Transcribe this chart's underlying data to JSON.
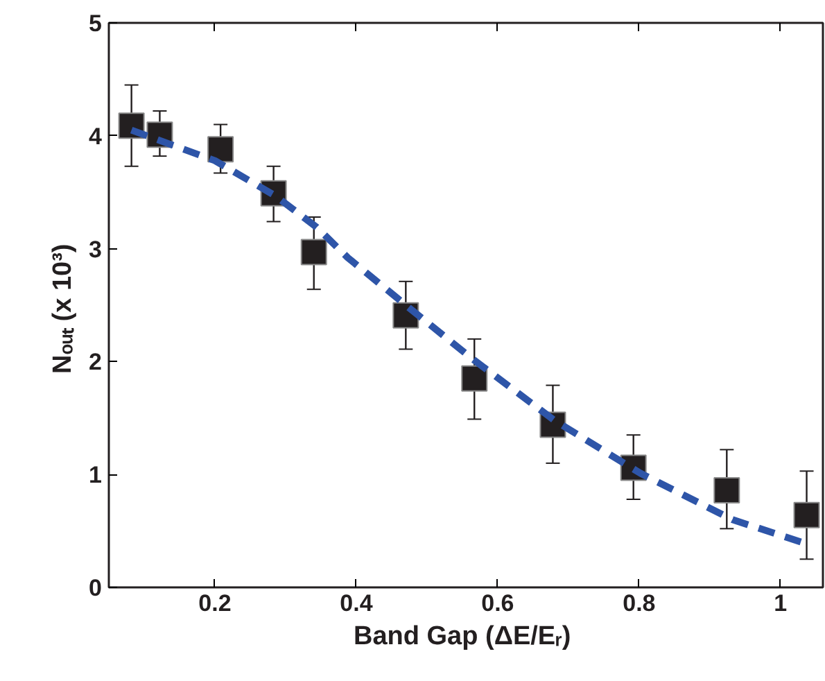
{
  "chart_data": {
    "type": "scatter",
    "xlabel": "Band Gap  (ΔE/Eᵣ)",
    "ylabel": "Nₒᵤₜ  (x 10³)",
    "xlim": [
      0.05,
      1.06
    ],
    "ylim": [
      0,
      5
    ],
    "xticks": [
      0.2,
      0.4,
      0.6,
      0.8,
      1
    ],
    "yticks": [
      0,
      1,
      2,
      3,
      4,
      5
    ],
    "grid": false,
    "series": [
      {
        "color": "#231f20",
        "marker": "square",
        "x": [
          0.082,
          0.122,
          0.208,
          0.283,
          0.34,
          0.47,
          0.567,
          0.678,
          0.792,
          0.924,
          1.037
        ],
        "values": [
          4.09,
          4.01,
          3.88,
          3.49,
          2.97,
          2.41,
          1.85,
          1.44,
          1.06,
          0.86,
          0.64
        ],
        "errors": [
          [
            3.73,
            4.45
          ],
          [
            3.82,
            4.22
          ],
          [
            3.67,
            4.1
          ],
          [
            3.24,
            3.73
          ],
          [
            2.64,
            3.28
          ],
          [
            2.11,
            2.71
          ],
          [
            1.49,
            2.2
          ],
          [
            1.1,
            1.79
          ],
          [
            0.78,
            1.35
          ],
          [
            0.52,
            1.22
          ],
          [
            0.25,
            1.03
          ]
        ]
      },
      {
        "type": "line",
        "color": "#2e55a8",
        "line_style": "dashed",
        "marker": "none",
        "x": [
          0.082,
          0.2,
          0.285,
          0.344,
          0.388,
          0.472,
          0.563,
          0.68,
          0.802,
          0.932,
          1.035
        ],
        "values": [
          4.05,
          3.78,
          3.47,
          3.19,
          2.92,
          2.49,
          2.03,
          1.48,
          1.01,
          0.6,
          0.39
        ]
      }
    ]
  }
}
